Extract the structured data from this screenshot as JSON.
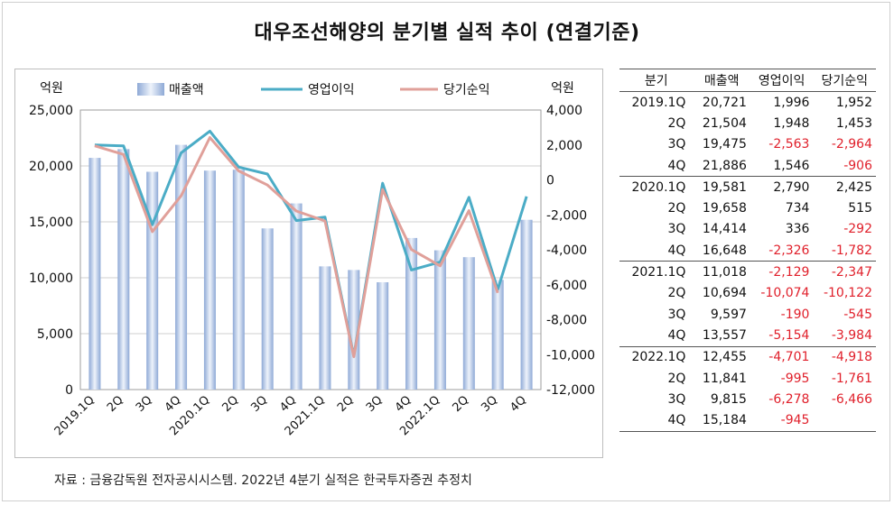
{
  "title": "대우조선해양의 분기별 실적 추이 (연결기준)",
  "source_note": "자료 : 금융감독원 전자공시시스템. 2022년 4분기 실적은 한국투자증권 추정치",
  "chart_data": {
    "type": "bar",
    "categories": [
      "2019.1Q",
      "2Q",
      "3Q",
      "4Q",
      "2020.1Q",
      "2Q",
      "3Q",
      "4Q",
      "2021.1Q",
      "2Q",
      "3Q",
      "4Q",
      "2022.1Q",
      "2Q",
      "3Q",
      "4Q"
    ],
    "left_axis": {
      "unit": "억원",
      "ylim": [
        0,
        25000
      ],
      "ticks": [
        "0",
        "5,000",
        "10,000",
        "15,000",
        "20,000",
        "25,000"
      ]
    },
    "right_axis": {
      "unit": "억원",
      "ylim": [
        -12000,
        4000
      ],
      "ticks": [
        "-12,000",
        "-10,000",
        "-8,000",
        "-6,000",
        "-4,000",
        "-2,000",
        "0",
        "2,000",
        "4,000"
      ]
    },
    "grid": true,
    "legend_position": "top",
    "series": [
      {
        "name": "매출액",
        "kind": "bar",
        "axis": "left",
        "color": "#a9bfe0",
        "values": [
          20721,
          21504,
          19475,
          21886,
          19581,
          19658,
          14414,
          16648,
          11018,
          10694,
          9597,
          13557,
          12455,
          11841,
          9815,
          15184
        ]
      },
      {
        "name": "영업이익",
        "kind": "line",
        "axis": "right",
        "color": "#4bacc6",
        "values": [
          1996,
          1948,
          -2563,
          1546,
          2790,
          734,
          336,
          -2326,
          -2129,
          -10074,
          -190,
          -5154,
          -4701,
          -995,
          -6278,
          -945
        ]
      },
      {
        "name": "당기순익",
        "kind": "line",
        "axis": "right",
        "color": "#e0a09a",
        "values": [
          1952,
          1453,
          -2964,
          -906,
          2425,
          515,
          -292,
          -1782,
          -2347,
          -10122,
          -545,
          -3984,
          -4918,
          -1761,
          -6466,
          null
        ]
      }
    ]
  },
  "table": {
    "headers": [
      "분기",
      "매출액",
      "영업이익",
      "당기순익"
    ],
    "rows": [
      [
        "2019.1Q",
        "20,721",
        "1,996",
        "1,952"
      ],
      [
        "2Q",
        "21,504",
        "1,948",
        "1,453"
      ],
      [
        "3Q",
        "19,475",
        "-2,563",
        "-2,964"
      ],
      [
        "4Q",
        "21,886",
        "1,546",
        "-906"
      ],
      [
        "2020.1Q",
        "19,581",
        "2,790",
        "2,425"
      ],
      [
        "2Q",
        "19,658",
        "734",
        "515"
      ],
      [
        "3Q",
        "14,414",
        "336",
        "-292"
      ],
      [
        "4Q",
        "16,648",
        "-2,326",
        "-1,782"
      ],
      [
        "2021.1Q",
        "11,018",
        "-2,129",
        "-2,347"
      ],
      [
        "2Q",
        "10,694",
        "-10,074",
        "-10,122"
      ],
      [
        "3Q",
        "9,597",
        "-190",
        "-545"
      ],
      [
        "4Q",
        "13,557",
        "-5,154",
        "-3,984"
      ],
      [
        "2022.1Q",
        "12,455",
        "-4,701",
        "-4,918"
      ],
      [
        "2Q",
        "11,841",
        "-995",
        "-1,761"
      ],
      [
        "3Q",
        "9,815",
        "-6,278",
        "-6,466"
      ],
      [
        "4Q",
        "15,184",
        "-945",
        ""
      ]
    ]
  }
}
